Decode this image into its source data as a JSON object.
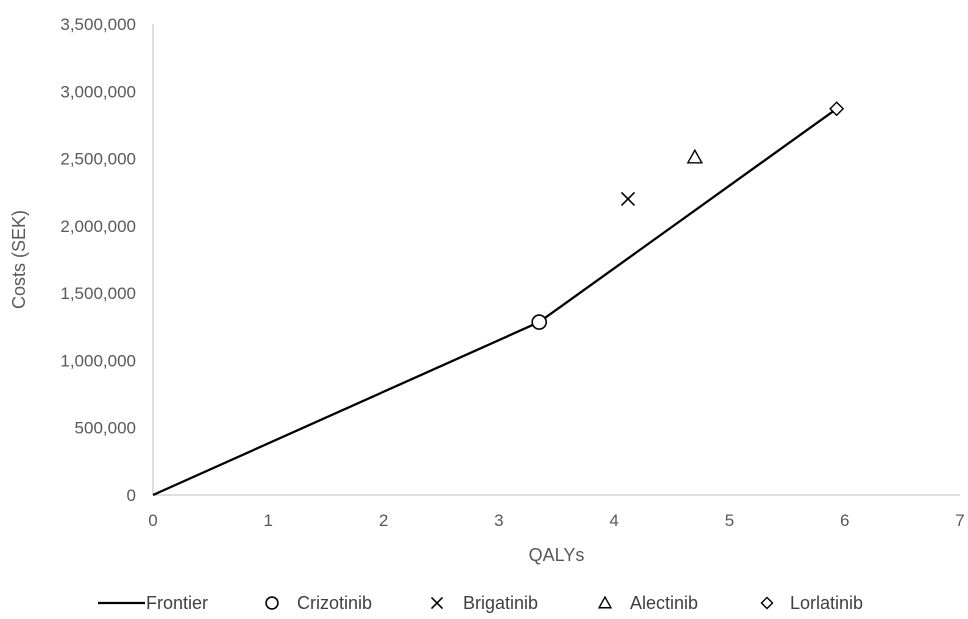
{
  "chart_data": {
    "type": "scatter",
    "title": "",
    "xlabel": "QALYs",
    "ylabel": "Costs (SEK)",
    "xlim": [
      0,
      7
    ],
    "ylim": [
      0,
      3500000
    ],
    "x_ticks": [
      0,
      1,
      2,
      3,
      4,
      5,
      6,
      7
    ],
    "x_tick_labels": [
      "0",
      "1",
      "2",
      "3",
      "4",
      "5",
      "6",
      "7"
    ],
    "y_ticks": [
      0,
      500000,
      1000000,
      1500000,
      2000000,
      2500000,
      3000000,
      3500000
    ],
    "y_tick_labels": [
      "0",
      "500,000",
      "1,000,000",
      "1,500,000",
      "2,000,000",
      "2,500,000",
      "3,000,000",
      "3,500,000"
    ],
    "grid": false,
    "legend_position": "bottom",
    "series": [
      {
        "name": "Frontier",
        "kind": "line",
        "points": [
          [
            0,
            0
          ],
          [
            3.35,
            1285000
          ],
          [
            5.93,
            2870000
          ]
        ]
      },
      {
        "name": "Crizotinib",
        "kind": "marker",
        "marker": "circle",
        "points": [
          [
            3.35,
            1285000
          ]
        ]
      },
      {
        "name": "Brigatinib",
        "kind": "marker",
        "marker": "x",
        "points": [
          [
            4.12,
            2200000
          ]
        ]
      },
      {
        "name": "Alectinib",
        "kind": "marker",
        "marker": "triangle",
        "points": [
          [
            4.7,
            2510000
          ]
        ]
      },
      {
        "name": "Lorlatinib",
        "kind": "marker",
        "marker": "diamond",
        "points": [
          [
            5.93,
            2870000
          ]
        ]
      }
    ]
  }
}
